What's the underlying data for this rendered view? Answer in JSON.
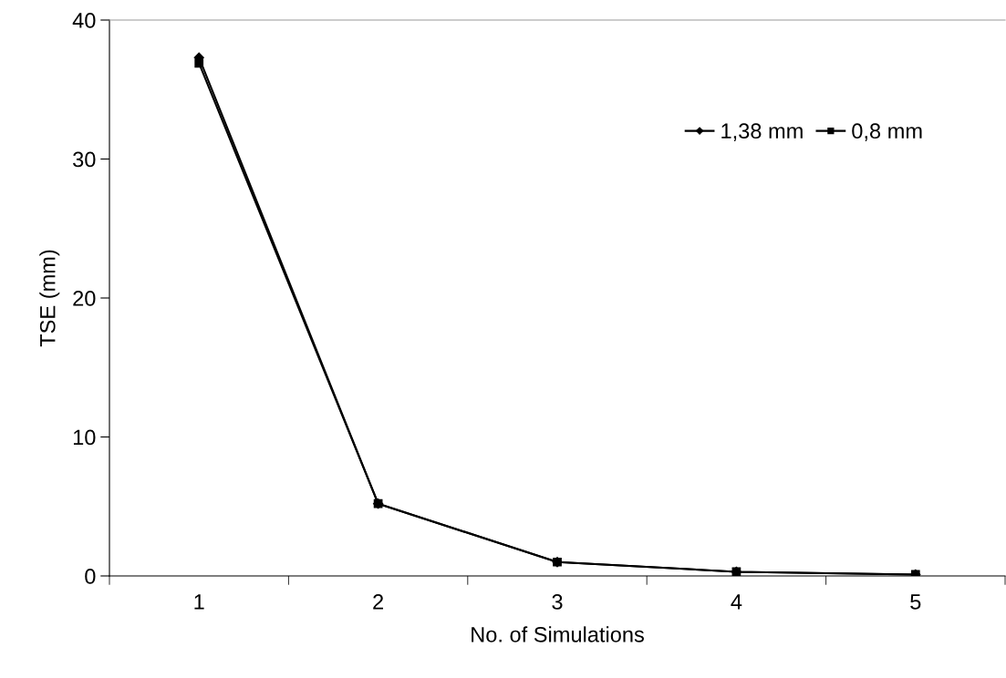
{
  "chart_data": {
    "type": "line",
    "xlabel": "No. of Simulations",
    "ylabel": "TSE (mm)",
    "categories": [
      "1",
      "2",
      "3",
      "4",
      "5"
    ],
    "series": [
      {
        "name": "1,38 mm",
        "color": "#000000",
        "marker": "diamond",
        "values": [
          37.3,
          5.2,
          1.0,
          0.3,
          0.1
        ]
      },
      {
        "name": "0,8 mm",
        "color": "#000000",
        "marker": "square",
        "values": [
          36.9,
          5.2,
          1.0,
          0.3,
          0.1
        ]
      }
    ],
    "ylim": [
      0,
      40
    ],
    "yticks": [
      0,
      10,
      20,
      30,
      40
    ],
    "grid": false,
    "legend": "top right"
  }
}
